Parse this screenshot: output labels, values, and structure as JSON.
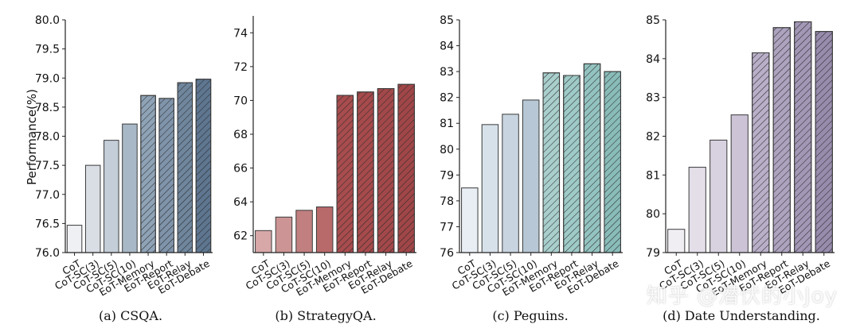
{
  "ylabel": "Performance(%)",
  "watermark": "知乎 @潜伏的小Joy",
  "colors": {
    "axis": "#222222",
    "edge": "#3a3a3a"
  },
  "chart_data": [
    {
      "type": "bar",
      "caption": "(a) CSQA.",
      "categories": [
        "CoT",
        "CoT-SC(3)",
        "CoT-SC(5)",
        "CoT-SC(10)",
        "EoT-Memory",
        "EoT-Report",
        "EoT-Relay",
        "EoT-Debate"
      ],
      "values": [
        76.47,
        77.5,
        77.93,
        78.21,
        78.7,
        78.65,
        78.92,
        78.98
      ],
      "hatched": [
        false,
        false,
        false,
        false,
        true,
        true,
        true,
        true
      ],
      "colors": [
        "#eef0f3",
        "#d9dee4",
        "#c4ced8",
        "#a9b8c6",
        "#8fa3b7",
        "#7f94aa",
        "#6f869d",
        "#5e7690"
      ],
      "ylim": [
        76.0,
        80.0
      ],
      "yticks": [
        "76.0",
        "76.5",
        "77.0",
        "77.5",
        "78.0",
        "78.5",
        "79.0",
        "79.5",
        "80.0"
      ]
    },
    {
      "type": "bar",
      "caption": "(b) StrategyQA.",
      "categories": [
        "CoT",
        "CoT-SC(3)",
        "CoT-SC(5)",
        "CoT-SC(10)",
        "EoT-Memory",
        "EoT-Report",
        "EoT-Relay",
        "EoT-Debate"
      ],
      "values": [
        62.3,
        63.1,
        63.5,
        63.7,
        70.3,
        70.5,
        70.7,
        70.95
      ],
      "hatched": [
        false,
        false,
        false,
        false,
        true,
        true,
        true,
        true
      ],
      "colors": [
        "#d8a8a8",
        "#cc9494",
        "#c27f80",
        "#b86a6b",
        "#a84c4e",
        "#a64a4c",
        "#a3484a",
        "#a14648"
      ],
      "ylim": [
        61.0,
        75.0
      ],
      "yticks": [
        "62",
        "64",
        "66",
        "68",
        "70",
        "72",
        "74"
      ]
    },
    {
      "type": "bar",
      "caption": "(c) Peguins.",
      "categories": [
        "CoT",
        "CoT-SC(3)",
        "CoT-SC(5)",
        "CoT-SC(10)",
        "EoT-Memory",
        "EoT-Report",
        "EoT-Relay",
        "EoT-Debate"
      ],
      "values": [
        78.5,
        80.95,
        81.35,
        81.9,
        82.95,
        82.85,
        83.3,
        83.0
      ],
      "hatched": [
        false,
        false,
        false,
        false,
        true,
        true,
        true,
        true
      ],
      "colors": [
        "#e8eef4",
        "#d7e1ea",
        "#c8d4e0",
        "#b7c7d6",
        "#a9cfcc",
        "#9ecac7",
        "#93c3c0",
        "#89bcb9"
      ],
      "ylim": [
        76,
        85
      ],
      "yticks": [
        "76",
        "77",
        "78",
        "79",
        "80",
        "81",
        "82",
        "83",
        "84",
        "85"
      ]
    },
    {
      "type": "bar",
      "caption": "(d) Date Understanding.",
      "categories": [
        "CoT",
        "CoT-SC(3)",
        "CoT-SC(5)",
        "CoT-SC(10)",
        "EoT-Memory",
        "EoT-Report",
        "EoT-Relay",
        "EoT-Debate"
      ],
      "values": [
        79.6,
        81.2,
        81.9,
        82.55,
        84.15,
        84.8,
        84.95,
        84.7
      ],
      "hatched": [
        false,
        false,
        false,
        false,
        true,
        true,
        true,
        true
      ],
      "colors": [
        "#f0edf3",
        "#e4dee9",
        "#d8d1e0",
        "#ccc4d6",
        "#b9afc8",
        "#ada3bf",
        "#a397b6",
        "#988cad"
      ],
      "ylim": [
        79,
        85
      ],
      "yticks": [
        "79",
        "80",
        "81",
        "82",
        "83",
        "84",
        "85"
      ]
    }
  ]
}
